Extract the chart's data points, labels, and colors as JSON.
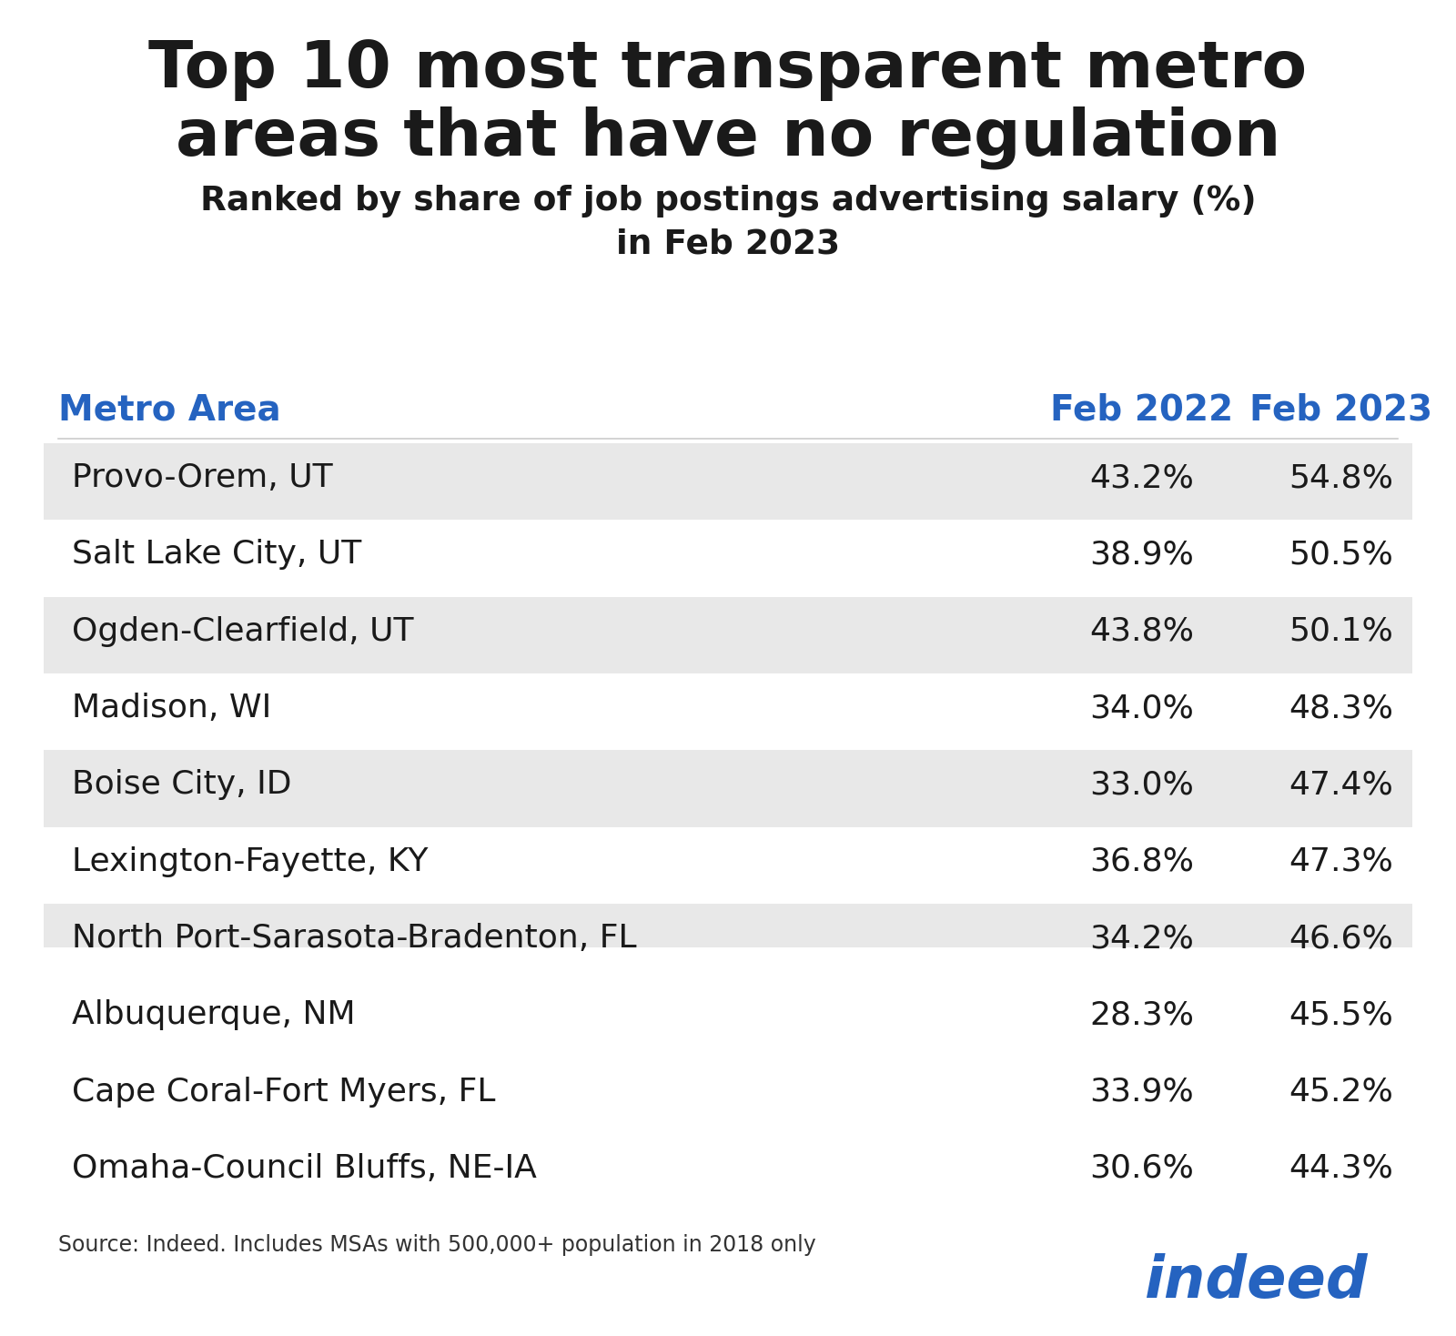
{
  "title_line1": "Top 10 most transparent metro",
  "title_line2": "areas that have no regulation",
  "subtitle": "Ranked by share of job postings advertising salary (%)\nin Feb 2023",
  "col_headers": [
    "Metro Area",
    "Feb 2022",
    "Feb 2023"
  ],
  "col_header_color": "#2563c0",
  "rows": [
    [
      "Provo-Orem, UT",
      "43.2%",
      "54.8%"
    ],
    [
      "Salt Lake City, UT",
      "38.9%",
      "50.5%"
    ],
    [
      "Ogden-Clearfield, UT",
      "43.8%",
      "50.1%"
    ],
    [
      "Madison, WI",
      "34.0%",
      "48.3%"
    ],
    [
      "Boise City, ID",
      "33.0%",
      "47.4%"
    ],
    [
      "Lexington-Fayette, KY",
      "36.8%",
      "47.3%"
    ],
    [
      "North Port-Sarasota-Bradenton, FL",
      "34.2%",
      "46.6%"
    ],
    [
      "Albuquerque, NM",
      "28.3%",
      "45.5%"
    ],
    [
      "Cape Coral-Fort Myers, FL",
      "33.9%",
      "45.2%"
    ],
    [
      "Omaha-Council Bluffs, NE-IA",
      "30.6%",
      "44.3%"
    ]
  ],
  "shaded_rows": [
    0,
    2,
    4,
    6,
    8
  ],
  "row_bg_shaded": "#e8e8e8",
  "row_bg_white": "#ffffff",
  "text_color": "#1a1a1a",
  "background_color": "#ffffff",
  "source_text": "Source: Indeed. Includes MSAs with 500,000+ population in 2018 only",
  "indeed_color": "#2563c0",
  "title_color": "#1a1a1a",
  "subtitle_color": "#1a1a1a"
}
